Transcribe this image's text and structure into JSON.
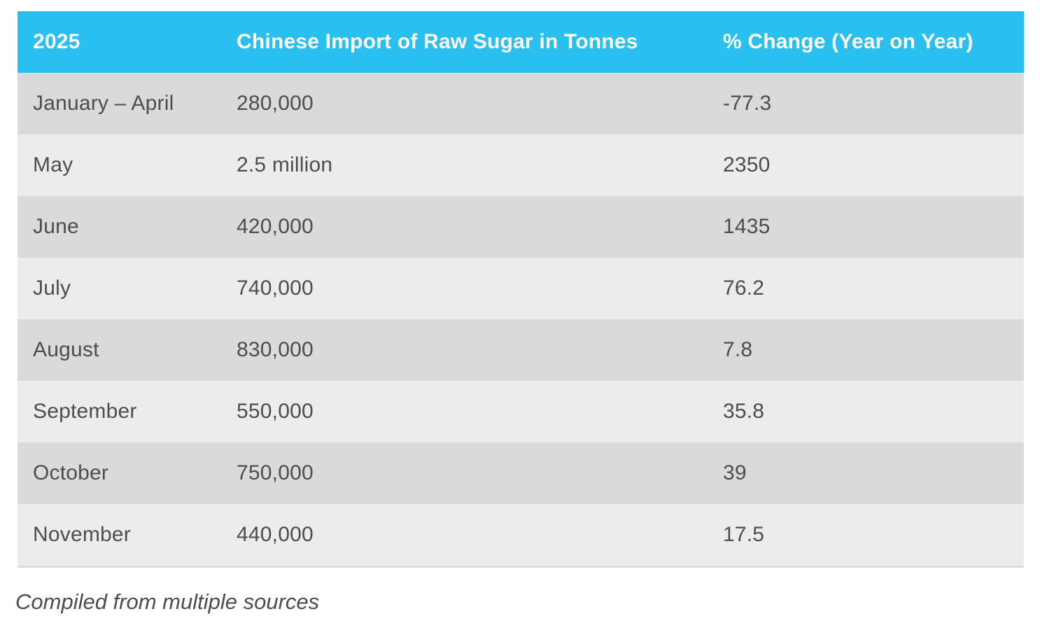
{
  "table": {
    "header": {
      "year": "2025",
      "import_label": "Chinese Import of Raw Sugar in Tonnes",
      "change_label": "% Change (Year on Year)"
    },
    "rows": [
      {
        "period": "January – April",
        "import": "280,000",
        "change": "-77.3"
      },
      {
        "period": "May",
        "import": "2.5 million",
        "change": "2350"
      },
      {
        "period": "June",
        "import": "420,000",
        "change": "1435"
      },
      {
        "period": "July",
        "import": "740,000",
        "change": "76.2"
      },
      {
        "period": "August",
        "import": "830,000",
        "change": "7.8"
      },
      {
        "period": "September",
        "import": "550,000",
        "change": "35.8"
      },
      {
        "period": "October",
        "import": "750,000",
        "change": "39"
      },
      {
        "period": "November",
        "import": "440,000",
        "change": "17.5"
      }
    ]
  },
  "footer": {
    "caption": "Compiled from multiple sources"
  },
  "colors": {
    "header_bg": "#29bfef",
    "header_text": "#ffffff",
    "row_dark": "#d9dad9",
    "row_light": "#ebeceb",
    "text": "#4d4d4d",
    "bottom_border": "#dcdddc"
  },
  "chart_data": {
    "type": "table",
    "title": "2025 Chinese Import of Raw Sugar in Tonnes",
    "columns": [
      "2025",
      "Chinese Import of Raw Sugar in Tonnes",
      "% Change (Year on Year)"
    ],
    "rows": [
      [
        "January – April",
        "280,000",
        -77.3
      ],
      [
        "May",
        "2.5 million",
        2350
      ],
      [
        "June",
        "420,000",
        1435
      ],
      [
        "July",
        "740,000",
        76.2
      ],
      [
        "August",
        "830,000",
        7.8
      ],
      [
        "September",
        "550,000",
        35.8
      ],
      [
        "October",
        "750,000",
        39
      ],
      [
        "November",
        "440,000",
        17.5
      ]
    ],
    "caption": "Compiled from multiple sources"
  }
}
